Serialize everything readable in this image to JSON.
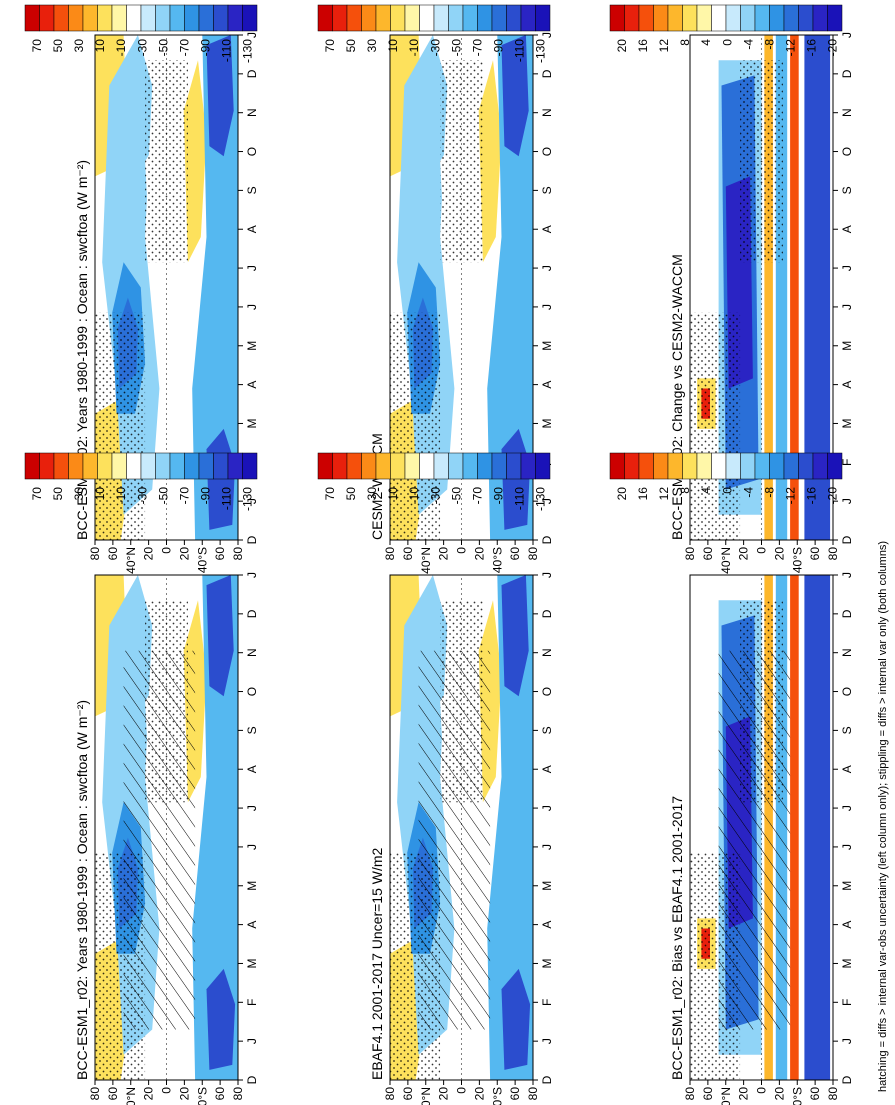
{
  "figure": {
    "footnote": "hatching = diffs > internal var-obs uncertainty (left column only); stippling = diffs > internal var only (both columns)"
  },
  "chart_data": [
    {
      "type": "heatmap",
      "title": "BCC-ESM1_r02: Years 1980-1999 : Ocean : swcftoa (W m⁻²)",
      "x": [
        "D",
        "J",
        "F",
        "M",
        "A",
        "M",
        "J",
        "J",
        "A",
        "S",
        "O",
        "N",
        "D",
        "J"
      ],
      "y": [
        "80",
        "60",
        "40°N",
        "20",
        "0",
        "20",
        "40°S",
        "60",
        "80"
      ],
      "colorbar": {
        "ticks": [
          "70",
          "50",
          "30",
          "10",
          "-10",
          "-30",
          "-50",
          "-70",
          "-90",
          "-110",
          "-130"
        ]
      },
      "overlay": [
        "hatching",
        "stippling"
      ]
    },
    {
      "type": "heatmap",
      "title": "BCC-ESM1_r02: Years 1980-1999 : Ocean : swcftoa (W m⁻²)",
      "x": [
        "D",
        "J",
        "F",
        "M",
        "A",
        "M",
        "J",
        "J",
        "A",
        "S",
        "O",
        "N",
        "D",
        "J"
      ],
      "y": [
        "80",
        "60",
        "40°N",
        "20",
        "0",
        "20",
        "40°S",
        "60",
        "80"
      ],
      "colorbar": {
        "ticks": [
          "70",
          "50",
          "30",
          "10",
          "-10",
          "-30",
          "-50",
          "-70",
          "-90",
          "-110",
          "-130"
        ]
      },
      "overlay": [
        "stippling"
      ]
    },
    {
      "type": "heatmap",
      "title": "EBAF4.1 2001-2017 Uncer=15 W/m2",
      "x": [
        "D",
        "J",
        "F",
        "M",
        "A",
        "M",
        "J",
        "J",
        "A",
        "S",
        "O",
        "N",
        "D",
        "J"
      ],
      "y": [
        "80",
        "60",
        "40°N",
        "20",
        "0",
        "20",
        "40°S",
        "60",
        "80"
      ],
      "colorbar": {
        "ticks": [
          "70",
          "50",
          "30",
          "10",
          "-10",
          "-30",
          "-50",
          "-70",
          "-90",
          "-110",
          "-130"
        ]
      },
      "overlay": [
        "hatching",
        "stippling"
      ]
    },
    {
      "type": "heatmap",
      "title": "CESM2-WACCM",
      "x": [
        "D",
        "J",
        "F",
        "M",
        "A",
        "M",
        "J",
        "J",
        "A",
        "S",
        "O",
        "N",
        "D",
        "J"
      ],
      "y": [
        "80",
        "60",
        "40°N",
        "20",
        "0",
        "20",
        "40°S",
        "60",
        "80"
      ],
      "colorbar": {
        "ticks": [
          "70",
          "50",
          "30",
          "10",
          "-10",
          "-30",
          "-50",
          "-70",
          "-90",
          "-110",
          "-130"
        ]
      },
      "overlay": [
        "stippling"
      ]
    },
    {
      "type": "heatmap",
      "title": "BCC-ESM1_r02: Bias vs EBAF4.1 2001-2017",
      "x": [
        "D",
        "J",
        "F",
        "M",
        "A",
        "M",
        "J",
        "J",
        "A",
        "S",
        "O",
        "N",
        "D",
        "J"
      ],
      "y": [
        "80",
        "60",
        "40°N",
        "20",
        "0",
        "20",
        "40°S",
        "60",
        "80"
      ],
      "colorbar": {
        "ticks": [
          "20",
          "16",
          "12",
          "8",
          "4",
          "0",
          "-4",
          "-8",
          "-12",
          "-16",
          "-20"
        ]
      },
      "overlay": [
        "hatching",
        "stippling"
      ]
    },
    {
      "type": "heatmap",
      "title": "BCC-ESM1_r02: Change vs CESM2-WACCM",
      "x": [
        "D",
        "J",
        "F",
        "M",
        "A",
        "M",
        "J",
        "J",
        "A",
        "S",
        "O",
        "N",
        "D",
        "J"
      ],
      "y": [
        "80",
        "60",
        "40°N",
        "20",
        "0",
        "20",
        "40°S",
        "60",
        "80"
      ],
      "colorbar": {
        "ticks": [
          "20",
          "16",
          "12",
          "8",
          "4",
          "0",
          "-4",
          "-8",
          "-12",
          "-16",
          "-20"
        ]
      },
      "overlay": [
        "stippling"
      ]
    }
  ]
}
